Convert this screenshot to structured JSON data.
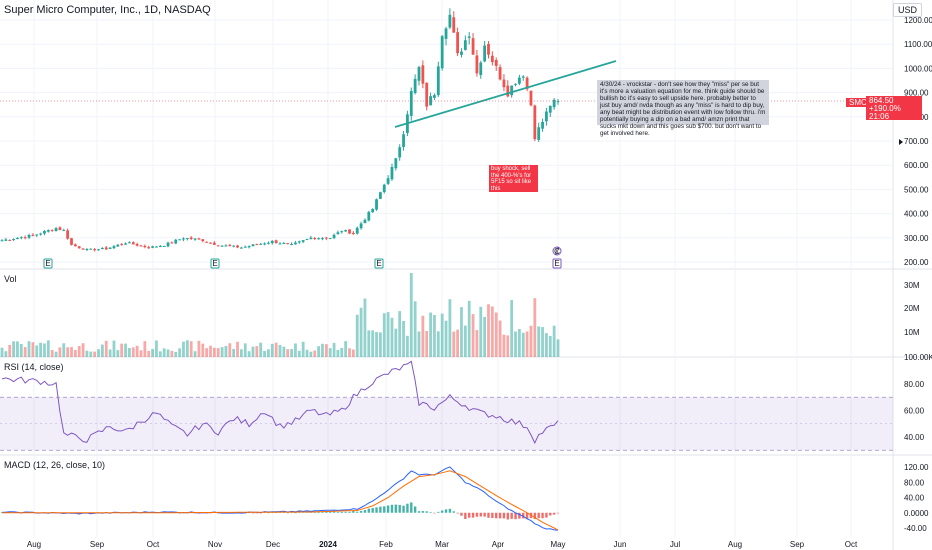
{
  "header": {
    "title": "Super Micro Computer, Inc., 1D, NASDAQ",
    "currency": "USD"
  },
  "price_label": {
    "symbol": "SMCI",
    "price": "864.50",
    "change": "+190.0%",
    "countdown": "21:06"
  },
  "annotations": {
    "main_note": "4/30/24 - vrockstar - don't see how they \"miss\" per se but it's more a valuation equation for me. think guide should be bullish bc it's easy to sell upside here. probably better to just buy amd/ nvda though as any \"miss\" is hard to dip buy, any beat might be distribution event with low follow thru. i'm potentially buying a dip on a bad amd/ amzn print that sucks mkt down and this goes sub $700. but don't want to get involved here.",
    "red_note": "buy shock, sell the 400-%'s for 5F15 so sit like this"
  },
  "panels": {
    "volume_label": "Vol",
    "rsi_label": "RSI (14, close)",
    "macd_label": "MACD (12, 26, close, 10)"
  },
  "markers": {
    "earnings": "E",
    "dividend": "₡"
  },
  "colors": {
    "up": "#26a69a",
    "down": "#ef5350",
    "rsi": "#7e57c2",
    "macd": "#2962ff",
    "signal": "#ff6d00",
    "trendline": "#26a69a",
    "price_line": "#f23645"
  },
  "chart_data": {
    "type": "candlestick",
    "price_axis": {
      "ticks": [
        "1200.00",
        "1100.00",
        "1000.00",
        "900.00",
        "800.00",
        "700.00",
        "600.00",
        "500.00",
        "400.00",
        "300.00",
        "200.00"
      ],
      "ylim": [
        190,
        1240
      ]
    },
    "volume_axis": {
      "ticks": [
        "30M",
        "20M",
        "10M",
        "100.00K"
      ]
    },
    "rsi_axis": {
      "ticks": [
        "80.00",
        "60.00",
        "40.00"
      ],
      "band": [
        30,
        70
      ]
    },
    "macd_axis": {
      "ticks": [
        "120.00",
        "80.00",
        "40.00",
        "0.0000",
        "-40.00"
      ]
    },
    "x_labels": [
      "Aug",
      "Sep",
      "Oct",
      "Nov",
      "Dec",
      "2024",
      "Feb",
      "Mar",
      "Apr",
      "May",
      "Jun",
      "Jul",
      "Aug",
      "Sep",
      "Oct"
    ],
    "last_price": 864.5,
    "price_keyframes": [
      [
        0,
        290
      ],
      [
        8,
        310
      ],
      [
        14,
        340
      ],
      [
        16,
        330
      ],
      [
        18,
        270
      ],
      [
        22,
        250
      ],
      [
        27,
        255
      ],
      [
        32,
        280
      ],
      [
        38,
        260
      ],
      [
        42,
        270
      ],
      [
        47,
        300
      ],
      [
        52,
        290
      ],
      [
        56,
        270
      ],
      [
        62,
        260
      ],
      [
        70,
        285
      ],
      [
        75,
        270
      ],
      [
        80,
        300
      ],
      [
        85,
        300
      ],
      [
        88,
        330
      ],
      [
        91,
        320
      ],
      [
        93,
        360
      ],
      [
        96,
        420
      ],
      [
        99,
        520
      ],
      [
        102,
        620
      ],
      [
        104,
        740
      ],
      [
        106,
        900
      ],
      [
        108,
        1000
      ],
      [
        110,
        850
      ],
      [
        112,
        900
      ],
      [
        114,
        1150
      ],
      [
        116,
        1220
      ],
      [
        118,
        1050
      ],
      [
        121,
        1150
      ],
      [
        123,
        980
      ],
      [
        125,
        1100
      ],
      [
        128,
        1000
      ],
      [
        131,
        900
      ],
      [
        133,
        950
      ],
      [
        135,
        980
      ],
      [
        137,
        850
      ],
      [
        138,
        720
      ],
      [
        140,
        780
      ],
      [
        142,
        850
      ],
      [
        144,
        864.5
      ]
    ],
    "rsi_keyframes": [
      [
        0,
        84
      ],
      [
        10,
        82
      ],
      [
        14,
        80
      ],
      [
        16,
        42
      ],
      [
        22,
        38
      ],
      [
        28,
        48
      ],
      [
        32,
        44
      ],
      [
        36,
        52
      ],
      [
        40,
        58
      ],
      [
        44,
        48
      ],
      [
        48,
        42
      ],
      [
        52,
        50
      ],
      [
        56,
        44
      ],
      [
        60,
        54
      ],
      [
        64,
        50
      ],
      [
        68,
        60
      ],
      [
        72,
        48
      ],
      [
        76,
        52
      ],
      [
        80,
        60
      ],
      [
        84,
        56
      ],
      [
        88,
        60
      ],
      [
        91,
        70
      ],
      [
        95,
        80
      ],
      [
        100,
        88
      ],
      [
        104,
        93
      ],
      [
        106,
        95
      ],
      [
        108,
        66
      ],
      [
        112,
        62
      ],
      [
        116,
        70
      ],
      [
        120,
        64
      ],
      [
        124,
        58
      ],
      [
        128,
        56
      ],
      [
        132,
        52
      ],
      [
        136,
        48
      ],
      [
        138,
        38
      ],
      [
        140,
        44
      ],
      [
        144,
        50
      ]
    ],
    "macd_keyframes": [
      [
        0,
        2
      ],
      [
        20,
        -2
      ],
      [
        40,
        2
      ],
      [
        60,
        0
      ],
      [
        80,
        4
      ],
      [
        92,
        10
      ],
      [
        96,
        30
      ],
      [
        100,
        60
      ],
      [
        104,
        90
      ],
      [
        106,
        110
      ],
      [
        108,
        100
      ],
      [
        112,
        100
      ],
      [
        116,
        120
      ],
      [
        120,
        80
      ],
      [
        124,
        60
      ],
      [
        128,
        30
      ],
      [
        132,
        5
      ],
      [
        136,
        -15
      ],
      [
        140,
        -40
      ],
      [
        144,
        -45
      ]
    ],
    "signal_keyframes": [
      [
        0,
        0
      ],
      [
        20,
        0
      ],
      [
        40,
        0
      ],
      [
        60,
        1
      ],
      [
        80,
        2
      ],
      [
        92,
        6
      ],
      [
        96,
        18
      ],
      [
        100,
        40
      ],
      [
        104,
        70
      ],
      [
        108,
        95
      ],
      [
        112,
        100
      ],
      [
        116,
        110
      ],
      [
        120,
        95
      ],
      [
        124,
        70
      ],
      [
        128,
        45
      ],
      [
        132,
        22
      ],
      [
        136,
        0
      ],
      [
        140,
        -25
      ],
      [
        144,
        -45
      ]
    ]
  }
}
